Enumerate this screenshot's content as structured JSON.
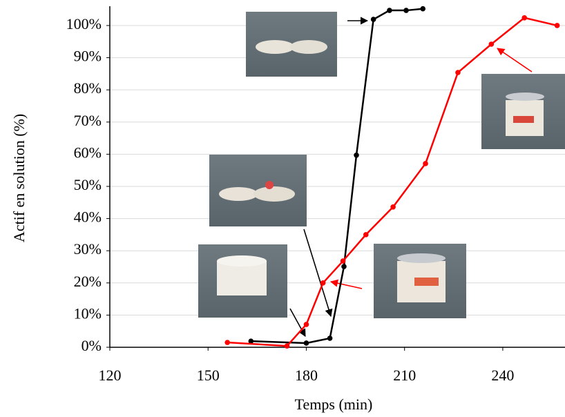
{
  "chart_data": {
    "type": "line",
    "x_label": "Temps (min)",
    "y_label": "Actif en solution (%)",
    "xlim": [
      120,
      259
    ],
    "xticks": [
      120,
      150,
      180,
      210,
      240
    ],
    "ylim": [
      0,
      106
    ],
    "yticks": [
      {
        "value": 0,
        "label": "0%"
      },
      {
        "value": 10,
        "label": "10%"
      },
      {
        "value": 20,
        "label": "20%"
      },
      {
        "value": 30,
        "label": "30%"
      },
      {
        "value": 40,
        "label": "40%"
      },
      {
        "value": 50,
        "label": "50%"
      },
      {
        "value": 60,
        "label": "60%"
      },
      {
        "value": 70,
        "label": "70%"
      },
      {
        "value": 80,
        "label": "80%"
      },
      {
        "value": 90,
        "label": "90%"
      },
      {
        "value": 100,
        "label": "100%"
      }
    ],
    "grid": true,
    "series": [
      {
        "color": "#000000",
        "x": [
          163.1,
          180.0,
          187.2,
          191.5,
          195.3,
          200.5,
          205.4,
          210.5,
          215.6
        ],
        "values": [
          1.9,
          1.3,
          2.8,
          25.1,
          59.7,
          101.9,
          104.7,
          104.7,
          105.2
        ]
      },
      {
        "color": "#ff0000",
        "x": [
          155.9,
          174.1,
          180.0,
          185.1,
          191.2,
          198.2,
          206.5,
          216.4,
          226.3,
          236.5,
          246.6,
          256.6
        ],
        "values": [
          1.5,
          0.4,
          7.1,
          20.0,
          26.8,
          35.0,
          43.6,
          57.1,
          85.4,
          94.2,
          102.4,
          100.0
        ]
      }
    ]
  }
}
